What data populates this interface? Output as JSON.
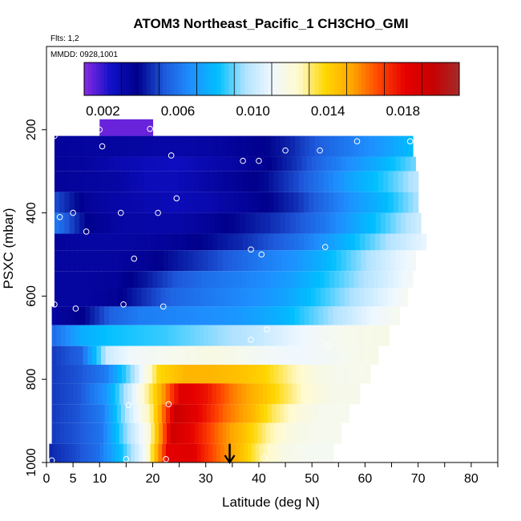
{
  "chart_data": {
    "type": "heatmap",
    "title": "ATOM3 Northeast_Pacific_1 CH3CHO_GMI",
    "flights_note": "Flts: 1,2",
    "dates_note": "MMDD: 0928,1001",
    "xlabel": "Latitude (deg N)",
    "ylabel": "PSXC (mbar)",
    "xlim": [
      0,
      85
    ],
    "ylim": [
      1000,
      0
    ],
    "y_reversed": true,
    "x_ticks": [
      0,
      5,
      10,
      20,
      30,
      40,
      50,
      60,
      70,
      80
    ],
    "x_tick_labels": [
      "0",
      "5",
      "10",
      "20",
      "30",
      "40",
      "50",
      "60",
      "70",
      "80"
    ],
    "y_ticks": [
      200,
      400,
      600,
      800,
      1000
    ],
    "y_tick_labels": [
      "200",
      "400",
      "600",
      "800",
      "1000"
    ],
    "colorbar": {
      "min": 0.001,
      "max": 0.021,
      "tick_values": [
        0.002,
        0.006,
        0.01,
        0.014,
        0.018
      ],
      "tick_labels": [
        "0.002",
        "0.006",
        "0.010",
        "0.014",
        "0.018"
      ],
      "colors": [
        "#8a2be2",
        "#1010c8",
        "#00008b",
        "#1e5adc",
        "#1e90ff",
        "#00bfff",
        "#b0e2ff",
        "#f0f8ff",
        "#fffacd",
        "#ffd700",
        "#ffa500",
        "#ff4500",
        "#e60000",
        "#c80000",
        "#a52a2a"
      ]
    },
    "bands": [
      {
        "p_top": 175,
        "p_bot": 215,
        "lat_start": 10,
        "lat_end": 20,
        "values": [
          0.0014,
          0.0014
        ]
      },
      {
        "p_top": 215,
        "p_bot": 265,
        "lat_start": 1.5,
        "lat_end": 69,
        "values": [
          0.0035,
          0.0034,
          0.0034,
          0.0033,
          0.0032,
          0.0033,
          0.0035,
          0.0038,
          0.0045,
          0.0055,
          0.0062,
          0.007,
          0.008
        ]
      },
      {
        "p_top": 265,
        "p_bot": 300,
        "lat_start": 1.5,
        "lat_end": 69.5,
        "values": [
          0.0035,
          0.0034,
          0.003,
          0.0028,
          0.0026,
          0.003,
          0.0033,
          0.0037,
          0.0046,
          0.0058,
          0.0068,
          0.0078,
          0.009
        ]
      },
      {
        "p_top": 300,
        "p_bot": 350,
        "lat_start": 1.5,
        "lat_end": 70,
        "values": [
          0.0035,
          0.0034,
          0.0033,
          0.0028,
          0.0028,
          0.0032,
          0.0036,
          0.004,
          0.005,
          0.0062,
          0.0075,
          0.0085,
          0.0098
        ]
      },
      {
        "p_top": 350,
        "p_bot": 400,
        "lat_start": 1.5,
        "lat_end": 70,
        "values": [
          0.005,
          0.0035,
          0.0032,
          0.003,
          0.0028,
          0.003,
          0.0034,
          0.0038,
          0.0046,
          0.0058,
          0.007,
          0.008,
          0.0095
        ]
      },
      {
        "p_top": 400,
        "p_bot": 450,
        "lat_start": 1.5,
        "lat_end": 70.5,
        "values": [
          0.006,
          0.0038,
          0.0033,
          0.0032,
          0.0032,
          0.0035,
          0.004,
          0.0045,
          0.0052,
          0.0062,
          0.0075,
          0.0088,
          0.0102
        ]
      },
      {
        "p_top": 450,
        "p_bot": 490,
        "lat_start": 1.5,
        "lat_end": 71.5,
        "values": [
          0.0035,
          0.0033,
          0.0033,
          0.0034,
          0.0036,
          0.004,
          0.0045,
          0.0052,
          0.006,
          0.0072,
          0.0085,
          0.0098,
          0.0108
        ]
      },
      {
        "p_top": 490,
        "p_bot": 540,
        "lat_start": 1.5,
        "lat_end": 69.5,
        "values": [
          0.0034,
          0.0034,
          0.0034,
          0.0036,
          0.0042,
          0.0048,
          0.0055,
          0.0062,
          0.0068,
          0.0078,
          0.009,
          0.0102,
          0.0112
        ]
      },
      {
        "p_top": 540,
        "p_bot": 580,
        "lat_start": 1.5,
        "lat_end": 69,
        "values": [
          0.0034,
          0.0034,
          0.0035,
          0.0042,
          0.0052,
          0.0058,
          0.0062,
          0.0066,
          0.0072,
          0.0082,
          0.0092,
          0.0102,
          0.0112
        ]
      },
      {
        "p_top": 580,
        "p_bot": 625,
        "lat_start": 1.5,
        "lat_end": 68,
        "values": [
          0.0034,
          0.0034,
          0.0036,
          0.0046,
          0.0056,
          0.006,
          0.0064,
          0.0068,
          0.0074,
          0.0084,
          0.0094,
          0.0104,
          0.0114
        ]
      },
      {
        "p_top": 625,
        "p_bot": 670,
        "lat_start": 1,
        "lat_end": 66.5,
        "values": [
          0.0034,
          0.0038,
          0.0055,
          0.0062,
          0.0064,
          0.0066,
          0.0068,
          0.0072,
          0.0078,
          0.0088,
          0.0098,
          0.0108,
          0.0115
        ]
      },
      {
        "p_top": 670,
        "p_bot": 720,
        "lat_start": 1,
        "lat_end": 64.5,
        "values": [
          0.0058,
          0.0076,
          0.0082,
          0.0084,
          0.0086,
          0.009,
          0.0094,
          0.0098,
          0.0104,
          0.011,
          0.0114,
          0.0116,
          0.0117
        ]
      },
      {
        "p_top": 720,
        "p_bot": 765,
        "lat_start": 1,
        "lat_end": 62.5,
        "values": [
          0.0048,
          0.0055,
          0.0102,
          0.0112,
          0.0114,
          0.0116,
          0.0118,
          0.0115,
          0.0112,
          0.011,
          0.0112,
          0.0115,
          0.0117
        ]
      },
      {
        "p_top": 765,
        "p_bot": 810,
        "lat_start": 1,
        "lat_end": 61,
        "values": [
          0.0048,
          0.0052,
          0.0062,
          0.0095,
          0.0138,
          0.0148,
          0.0148,
          0.0145,
          0.014,
          0.0128,
          0.0118,
          0.0115,
          0.0116
        ]
      },
      {
        "p_top": 810,
        "p_bot": 860,
        "lat_start": 1,
        "lat_end": 59,
        "values": [
          0.0048,
          0.0052,
          0.0068,
          0.0102,
          0.014,
          0.0185,
          0.0178,
          0.016,
          0.0148,
          0.0135,
          0.0122,
          0.0116,
          0.0116
        ]
      },
      {
        "p_top": 860,
        "p_bot": 905,
        "lat_start": 1,
        "lat_end": 57,
        "values": [
          0.0048,
          0.0052,
          0.0062,
          0.0098,
          0.013,
          0.0195,
          0.018,
          0.0162,
          0.015,
          0.0132,
          0.012,
          0.0115,
          0.0115
        ]
      },
      {
        "p_top": 905,
        "p_bot": 955,
        "lat_start": 1,
        "lat_end": 55.5,
        "values": [
          0.0048,
          0.0052,
          0.006,
          0.0092,
          0.012,
          0.0192,
          0.0178,
          0.016,
          0.0145,
          0.0128,
          0.0118,
          0.0115,
          0.0115
        ]
      },
      {
        "p_top": 955,
        "p_bot": 1000,
        "lat_start": 0.5,
        "lat_end": 54,
        "values": [
          0.0045,
          0.005,
          0.0058,
          0.0082,
          0.0112,
          0.0182,
          0.0185,
          0.0165,
          0.0148,
          0.0128,
          0.0117,
          0.0114,
          0.0114
        ]
      }
    ],
    "sample_points": [
      {
        "lat": 1.5,
        "p": 215
      },
      {
        "lat": 10,
        "p": 200
      },
      {
        "lat": 10.5,
        "p": 240
      },
      {
        "lat": 19.5,
        "p": 198
      },
      {
        "lat": 23.5,
        "p": 262
      },
      {
        "lat": 37,
        "p": 275
      },
      {
        "lat": 40,
        "p": 275
      },
      {
        "lat": 45,
        "p": 250
      },
      {
        "lat": 51.5,
        "p": 250
      },
      {
        "lat": 58.5,
        "p": 228
      },
      {
        "lat": 68.5,
        "p": 228
      },
      {
        "lat": 24.5,
        "p": 365
      },
      {
        "lat": 2.5,
        "p": 410
      },
      {
        "lat": 5,
        "p": 400
      },
      {
        "lat": 14,
        "p": 400
      },
      {
        "lat": 21,
        "p": 400
      },
      {
        "lat": 7.5,
        "p": 445
      },
      {
        "lat": 16.5,
        "p": 510
      },
      {
        "lat": 38.5,
        "p": 488
      },
      {
        "lat": 40.5,
        "p": 500
      },
      {
        "lat": 52.5,
        "p": 482
      },
      {
        "lat": 1.5,
        "p": 620
      },
      {
        "lat": 5.5,
        "p": 630
      },
      {
        "lat": 14.5,
        "p": 620
      },
      {
        "lat": 22,
        "p": 625
      },
      {
        "lat": 41.5,
        "p": 680
      },
      {
        "lat": 38.5,
        "p": 705
      },
      {
        "lat": 53,
        "p": 720
      },
      {
        "lat": 15.5,
        "p": 862
      },
      {
        "lat": 23,
        "p": 860
      },
      {
        "lat": 1,
        "p": 995
      },
      {
        "lat": 15,
        "p": 992
      },
      {
        "lat": 22.5,
        "p": 992
      },
      {
        "lat": 41,
        "p": 990
      }
    ],
    "marker_arrow": {
      "lat": 34.5,
      "p_from": 955,
      "p_to": 1000
    }
  }
}
